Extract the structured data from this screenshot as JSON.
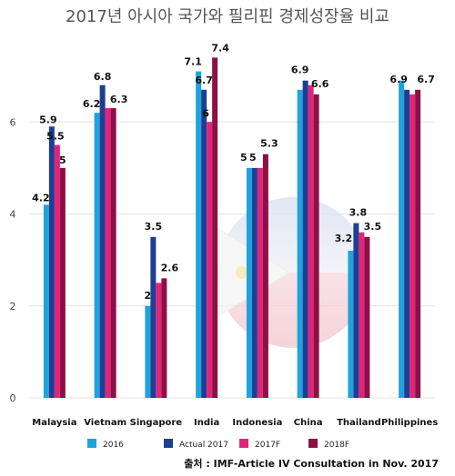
{
  "chart_data": {
    "type": "bar",
    "title": "2017년 아시아 국가와 필리핀 경제성장율 비교",
    "categories": [
      "Malaysia",
      "Vietnam",
      "Singapore",
      "India",
      "Indonesia",
      "China",
      "Thailand",
      "Philippines"
    ],
    "series": [
      {
        "name": "2016",
        "color": "#1fa3dc",
        "values": [
          4.2,
          6.2,
          2.0,
          7.1,
          5.0,
          6.7,
          3.2,
          6.9
        ]
      },
      {
        "name": "Actual 2017",
        "color": "#1c3f94",
        "values": [
          5.9,
          6.8,
          3.5,
          6.7,
          5.0,
          6.9,
          3.8,
          6.7
        ]
      },
      {
        "name": "2017F",
        "color": "#e0247a",
        "values": [
          5.5,
          6.3,
          2.5,
          6.0,
          5.0,
          6.8,
          3.6,
          6.6
        ]
      },
      {
        "name": "2018F",
        "color": "#8e0f44",
        "values": [
          5.0,
          6.3,
          2.6,
          7.4,
          5.3,
          6.6,
          3.5,
          6.7
        ]
      }
    ],
    "data_labels": [
      {
        "category": "Malaysia",
        "texts": [
          "4.2",
          "5.9",
          "5.5",
          "5"
        ]
      },
      {
        "category": "Vietnam",
        "texts": [
          "6.2",
          "6.8",
          "6.3"
        ]
      },
      {
        "category": "Singapore",
        "texts": [
          "2",
          "3.5",
          "2.6"
        ]
      },
      {
        "category": "India",
        "texts": [
          "7.1",
          "6.7",
          "6",
          "7.4"
        ]
      },
      {
        "category": "Indonesia",
        "texts": [
          "5",
          "5",
          "5.3"
        ]
      },
      {
        "category": "China",
        "texts": [
          "6.9",
          "6.6"
        ]
      },
      {
        "category": "Thailand",
        "texts": [
          "3.2",
          "3.8",
          "3.5"
        ]
      },
      {
        "category": "Philippines",
        "texts": [
          "6.9",
          "6.7"
        ]
      }
    ],
    "yticks": [
      0,
      2,
      4,
      6
    ],
    "ylim": [
      0,
      8
    ],
    "grid": true,
    "legend_position": "bottom",
    "source": "출처 :  IMF-Article IV Consultation in Nov. 2017"
  }
}
